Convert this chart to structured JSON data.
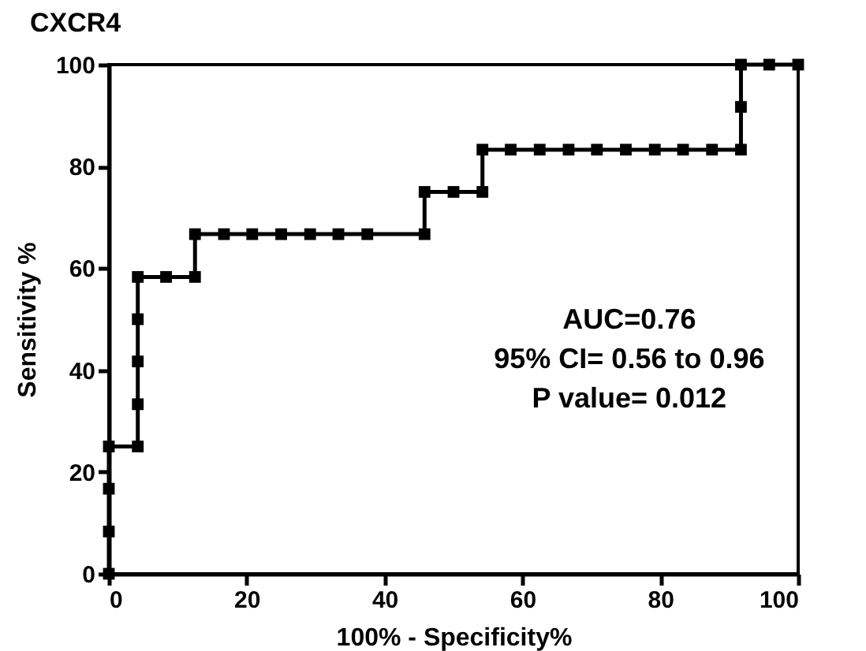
{
  "chart_data": {
    "type": "line",
    "title": "CXCR4",
    "xlabel": "100% - Specificity%",
    "ylabel": "Sensitivity %",
    "x": [
      0,
      0,
      0,
      0,
      4.2,
      4.2,
      4.2,
      4.2,
      4.2,
      8.3,
      12.5,
      12.5,
      16.7,
      20.8,
      25,
      29.2,
      33.3,
      37.5,
      45.8,
      45.8,
      50,
      54.2,
      54.2,
      58.3,
      62.5,
      66.7,
      70.8,
      75,
      79.2,
      83.3,
      87.5,
      91.7,
      91.7,
      91.7,
      95.8,
      100
    ],
    "series": [
      {
        "color": "#000000",
        "values": [
          0,
          8.3,
          16.7,
          25,
          25,
          33.3,
          41.7,
          50,
          58.3,
          58.3,
          58.3,
          66.7,
          66.7,
          66.7,
          66.7,
          66.7,
          66.7,
          66.7,
          66.7,
          75,
          75,
          75,
          83.3,
          83.3,
          83.3,
          83.3,
          83.3,
          83.3,
          83.3,
          83.3,
          83.3,
          83.3,
          91.7,
          100,
          100,
          100
        ]
      }
    ],
    "xlim": [
      0,
      100
    ],
    "ylim": [
      0,
      100
    ],
    "xticks": [
      0,
      20,
      40,
      60,
      80,
      100
    ],
    "yticks": [
      0,
      20,
      40,
      60,
      80,
      100
    ],
    "marker": "square",
    "line_style": "solid",
    "grid": false,
    "annotations": [
      "AUC=0.76",
      "95% CI= 0.56 to 0.96",
      "P value= 0.012"
    ]
  }
}
